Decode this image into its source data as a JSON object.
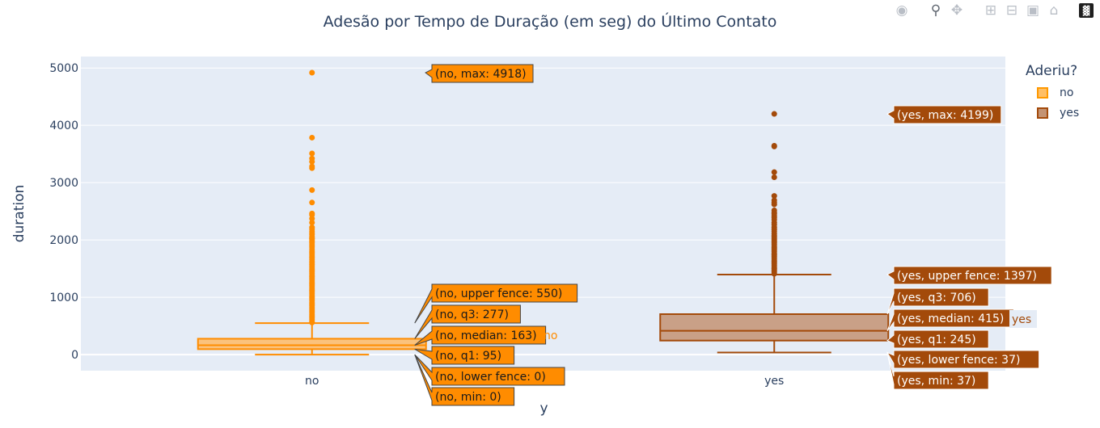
{
  "title": "Adesão por Tempo de Duração (em seg) do Último Contato",
  "modebar": {
    "icons": [
      "camera-icon",
      "zoom-icon",
      "pan-icon",
      "zoom-in-icon",
      "zoom-out-icon",
      "autoscale-icon",
      "reset-axes-icon",
      "plotly-logo-icon"
    ]
  },
  "legend": {
    "title": "Aderiu?",
    "items": [
      {
        "label": "no",
        "color": "#ff9900",
        "fill": "#ffbf66"
      },
      {
        "label": "yes",
        "color": "#a34a0a",
        "fill": "#c49373"
      }
    ]
  },
  "chart_data": {
    "type": "box",
    "title": "Adesão por Tempo de Duração (em seg) do Último Contato",
    "xlabel": "y",
    "ylabel": "duration",
    "categories": [
      "no",
      "yes"
    ],
    "ylim": [
      -280,
      5200
    ],
    "yticks": [
      0,
      1000,
      2000,
      3000,
      4000,
      5000
    ],
    "grid": true,
    "legend_position": "top-right",
    "series": [
      {
        "name": "no",
        "color": "#ff8c00",
        "fill": "#ffbb66",
        "stats": {
          "min": 0,
          "lower_fence": 0,
          "q1": 95,
          "median": 163,
          "q3": 277,
          "upper_fence": 550,
          "max": 4918
        },
        "outliers": [
          4918,
          3785,
          3510,
          3422,
          3366,
          3284,
          3253,
          2870,
          2653,
          2462,
          2438,
          2372,
          2301,
          2219,
          2187,
          2150,
          2122,
          2093,
          2055,
          2029,
          2015,
          1980,
          1950,
          1910,
          1877,
          1840,
          1806,
          1780,
          1750,
          1720,
          1690,
          1660,
          1630,
          1600,
          1570,
          1540,
          1510,
          1480,
          1450,
          1420,
          1390,
          1360,
          1330,
          1300,
          1270,
          1240,
          1210,
          1180,
          1150,
          1120,
          1090,
          1060,
          1030,
          1000,
          970,
          940,
          910,
          880,
          850,
          820,
          790,
          760,
          730,
          700,
          670,
          640,
          610,
          580,
          560
        ],
        "labels": [
          "(no, upper fence: 550)",
          "(no, q3: 277)",
          "(no, median: 163)",
          "(no, q1: 95)",
          "(no, lower fence: 0)",
          "(no, min: 0)",
          "(no, max: 4918)"
        ],
        "trace_label": "no"
      },
      {
        "name": "yes",
        "color": "#a34a0a",
        "fill": "#c49373",
        "stats": {
          "min": 37,
          "lower_fence": 37,
          "q1": 245,
          "median": 415,
          "q3": 706,
          "upper_fence": 1397,
          "max": 4199
        },
        "outliers": [
          4199,
          3643,
          3631,
          3183,
          3094,
          2769,
          2692,
          2653,
          2621,
          2516,
          2482,
          2456,
          2420,
          2389,
          2355,
          2301,
          2267,
          2219,
          2184,
          2150,
          2110,
          2080,
          2050,
          2015,
          1980,
          1950,
          1920,
          1890,
          1860,
          1830,
          1800,
          1770,
          1740,
          1710,
          1680,
          1650,
          1620,
          1590,
          1560,
          1530,
          1500,
          1470,
          1440,
          1410
        ],
        "labels": [
          "(yes, max: 4199)",
          "(yes, upper fence: 1397)",
          "(yes, q3: 706)",
          "(yes, median: 415)",
          "(yes, q1: 245)",
          "(yes, lower fence: 37)",
          "(yes, min: 37)"
        ],
        "trace_label": "yes"
      }
    ]
  }
}
